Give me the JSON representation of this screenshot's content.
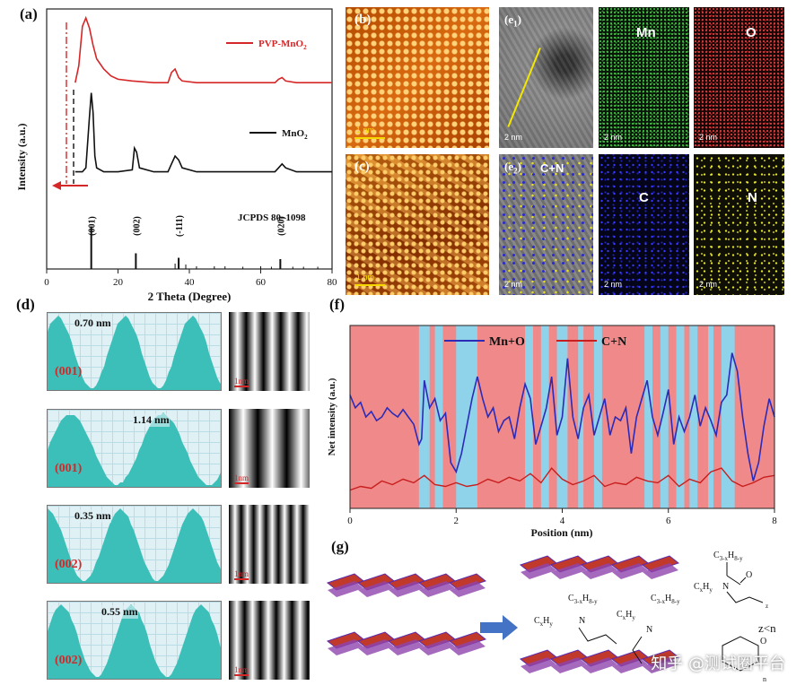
{
  "panel_labels": {
    "a": "(a)",
    "b": "(b)",
    "c": "(c)",
    "d": "(d)",
    "e1": "(e",
    "e1_sub": "1",
    "e1_close": ")",
    "e2": "(e",
    "e2_sub": "2",
    "e2_close": ")",
    "f": "(f)",
    "g": "(g)"
  },
  "colors": {
    "pvp_line": "#d62728",
    "mno2_line": "#111111",
    "mn_o_line": "#2b2bb8",
    "c_n_line": "#c81e1e",
    "f_pink": "#f08a8a",
    "f_blue": "#8fd3ea",
    "d_fill": "#3bbfb8",
    "d_bg": "#dff1f5",
    "scale_yellow": "#f5d800"
  },
  "chart_data": [
    {
      "id": "xrd",
      "type": "line",
      "title": "",
      "xlabel": "2 Theta (Degree)",
      "ylabel": "Intensity (a.u.)",
      "xlim": [
        0,
        80
      ],
      "xticks": [
        0,
        20,
        40,
        60,
        80
      ],
      "series": [
        {
          "name": "PVP-MnO",
          "name_sub": "2",
          "x": [
            8,
            9,
            10,
            11,
            12,
            13,
            14,
            16,
            18,
            20,
            24,
            30,
            34,
            35,
            36,
            37,
            38,
            42,
            50,
            60,
            64,
            65,
            66,
            67,
            70,
            75,
            80
          ],
          "y": [
            0.62,
            0.72,
            0.95,
            1.0,
            0.94,
            0.84,
            0.76,
            0.7,
            0.66,
            0.64,
            0.63,
            0.62,
            0.62,
            0.68,
            0.7,
            0.65,
            0.63,
            0.62,
            0.62,
            0.62,
            0.62,
            0.64,
            0.65,
            0.63,
            0.62,
            0.62,
            0.62
          ]
        },
        {
          "name": "MnO",
          "name_sub": "2",
          "x": [
            8,
            10,
            11,
            12,
            12.5,
            13,
            13.5,
            14,
            16,
            20,
            24,
            24.6,
            25.2,
            26,
            30,
            34,
            35,
            36,
            37,
            38,
            42,
            50,
            60,
            64,
            65,
            66,
            67,
            70,
            75,
            80
          ],
          "y": [
            0.22,
            0.22,
            0.24,
            0.5,
            0.62,
            0.52,
            0.3,
            0.24,
            0.22,
            0.22,
            0.23,
            0.34,
            0.32,
            0.24,
            0.22,
            0.22,
            0.26,
            0.3,
            0.28,
            0.24,
            0.22,
            0.22,
            0.22,
            0.22,
            0.24,
            0.26,
            0.24,
            0.22,
            0.22,
            0.22
          ]
        }
      ],
      "reference": {
        "name": "JCPDS 80–1098",
        "peaks": [
          {
            "x": 12.5,
            "h": 0.95,
            "label": "(001)"
          },
          {
            "x": 25,
            "h": 0.35,
            "label": "(002)"
          },
          {
            "x": 37,
            "h": 0.25,
            "label": "(-111)"
          },
          {
            "x": 36,
            "h": 0.12,
            "label": ""
          },
          {
            "x": 39,
            "h": 0.1,
            "label": ""
          },
          {
            "x": 42,
            "h": 0.06,
            "label": ""
          },
          {
            "x": 47,
            "h": 0.06,
            "label": ""
          },
          {
            "x": 50,
            "h": 0.06,
            "label": ""
          },
          {
            "x": 55,
            "h": 0.05,
            "label": ""
          },
          {
            "x": 60,
            "h": 0.06,
            "label": ""
          },
          {
            "x": 63,
            "h": 0.05,
            "label": ""
          },
          {
            "x": 65.5,
            "h": 0.22,
            "label": "(020)"
          },
          {
            "x": 69,
            "h": 0.05,
            "label": ""
          },
          {
            "x": 72,
            "h": 0.05,
            "label": ""
          },
          {
            "x": 76,
            "h": 0.05,
            "label": ""
          }
        ]
      }
    },
    {
      "id": "profile",
      "type": "line",
      "title": "",
      "xlabel": "Position (nm)",
      "ylabel": "Net intensity (a.u.)",
      "xlim": [
        0,
        8
      ],
      "xticks": [
        0,
        2,
        4,
        6,
        8
      ],
      "series": [
        {
          "name": "Mn+O",
          "x": [
            0,
            0.1,
            0.2,
            0.3,
            0.4,
            0.5,
            0.6,
            0.7,
            0.8,
            0.9,
            1.0,
            1.1,
            1.2,
            1.3,
            1.35,
            1.4,
            1.5,
            1.6,
            1.7,
            1.8,
            1.9,
            2.0,
            2.1,
            2.2,
            2.3,
            2.4,
            2.5,
            2.6,
            2.7,
            2.8,
            2.9,
            3.0,
            3.1,
            3.2,
            3.3,
            3.4,
            3.5,
            3.6,
            3.7,
            3.8,
            3.9,
            4.0,
            4.1,
            4.2,
            4.3,
            4.4,
            4.5,
            4.6,
            4.7,
            4.8,
            4.9,
            5.0,
            5.1,
            5.2,
            5.3,
            5.4,
            5.5,
            5.6,
            5.7,
            5.8,
            5.9,
            6.0,
            6.1,
            6.2,
            6.3,
            6.4,
            6.5,
            6.6,
            6.7,
            6.8,
            6.9,
            7.0,
            7.1,
            7.2,
            7.3,
            7.4,
            7.5,
            7.6,
            7.7,
            7.8,
            7.9,
            8.0
          ],
          "y": [
            0.62,
            0.55,
            0.58,
            0.5,
            0.53,
            0.48,
            0.5,
            0.55,
            0.52,
            0.5,
            0.54,
            0.5,
            0.46,
            0.35,
            0.38,
            0.7,
            0.55,
            0.6,
            0.48,
            0.52,
            0.25,
            0.2,
            0.3,
            0.45,
            0.6,
            0.72,
            0.6,
            0.5,
            0.55,
            0.42,
            0.48,
            0.5,
            0.38,
            0.55,
            0.68,
            0.6,
            0.35,
            0.45,
            0.55,
            0.72,
            0.4,
            0.5,
            0.82,
            0.5,
            0.38,
            0.55,
            0.62,
            0.4,
            0.5,
            0.6,
            0.4,
            0.5,
            0.48,
            0.55,
            0.3,
            0.5,
            0.6,
            0.7,
            0.5,
            0.4,
            0.52,
            0.65,
            0.35,
            0.5,
            0.42,
            0.5,
            0.62,
            0.45,
            0.55,
            0.48,
            0.4,
            0.58,
            0.62,
            0.85,
            0.75,
            0.5,
            0.3,
            0.15,
            0.25,
            0.45,
            0.6,
            0.5
          ]
        },
        {
          "name": "C+N",
          "x": [
            0,
            0.2,
            0.4,
            0.6,
            0.8,
            1.0,
            1.2,
            1.4,
            1.6,
            1.8,
            2.0,
            2.2,
            2.4,
            2.6,
            2.8,
            3.0,
            3.2,
            3.4,
            3.6,
            3.8,
            4.0,
            4.2,
            4.4,
            4.6,
            4.8,
            5.0,
            5.2,
            5.4,
            5.6,
            5.8,
            6.0,
            6.2,
            6.4,
            6.6,
            6.8,
            7.0,
            7.2,
            7.4,
            7.6,
            7.8,
            8.0
          ],
          "y": [
            0.1,
            0.12,
            0.11,
            0.15,
            0.13,
            0.16,
            0.14,
            0.18,
            0.13,
            0.12,
            0.14,
            0.12,
            0.13,
            0.16,
            0.14,
            0.17,
            0.15,
            0.19,
            0.14,
            0.22,
            0.16,
            0.13,
            0.15,
            0.18,
            0.12,
            0.14,
            0.13,
            0.17,
            0.15,
            0.14,
            0.18,
            0.12,
            0.16,
            0.14,
            0.2,
            0.22,
            0.15,
            0.12,
            0.14,
            0.17,
            0.18
          ]
        }
      ],
      "bands": [
        [
          1.3,
          1.5
        ],
        [
          1.6,
          1.75
        ],
        [
          2.0,
          2.4
        ],
        [
          3.3,
          3.45
        ],
        [
          3.6,
          3.75
        ],
        [
          3.9,
          4.1
        ],
        [
          4.3,
          4.4
        ],
        [
          4.6,
          4.75
        ],
        [
          5.55,
          5.7
        ],
        [
          5.85,
          6.0
        ],
        [
          6.15,
          6.3
        ],
        [
          6.4,
          6.55
        ],
        [
          6.75,
          6.85
        ],
        [
          7.0,
          7.25
        ]
      ]
    }
  ],
  "panel_a": {
    "legend_pvp": "PVP-MnO",
    "legend_pvp_sub": "2",
    "legend_mno2": "MnO",
    "legend_mno2_sub": "2",
    "jcpds": "JCPDS 80–1098"
  },
  "panel_b": {
    "scale": "1 nm"
  },
  "panel_c": {
    "scale": "1 nm"
  },
  "panel_e": {
    "mn": "Mn",
    "o": "O",
    "cn": "C+N",
    "c": "C",
    "n": "N",
    "scale": "2 nm"
  },
  "panel_d": [
    {
      "spacing": "0.70 nm",
      "plane": "(001)",
      "scale": "1nm",
      "periods": 2.6,
      "phase": 0.2,
      "fringes": 10
    },
    {
      "spacing": "1.14 nm",
      "plane": "(001)",
      "scale": "1nm",
      "periods": 1.9,
      "phase": 0.0,
      "fringes": 6
    },
    {
      "spacing": "0.35 nm",
      "plane": "(002)",
      "scale": "1nm",
      "periods": 2.4,
      "phase": 0.5,
      "fringes": 14
    },
    {
      "spacing": "0.55 nm",
      "plane": "(002)",
      "scale": "1nm",
      "periods": 2.5,
      "phase": 0.1,
      "fringes": 11
    }
  ],
  "panel_g": {
    "f1_c": "C",
    "f1_sub1": "3-x",
    "f1_h": "H",
    "f1_sub2": "8-y",
    "f2_c": "C",
    "f2_x": "x",
    "f2_h": "H",
    "f2_y": "y",
    "atom_n": "N",
    "atom_o": "O",
    "bracket_sub": "z",
    "bracket_n": "n",
    "relation": "z<n"
  },
  "watermark": "知乎 @测试圈平台"
}
